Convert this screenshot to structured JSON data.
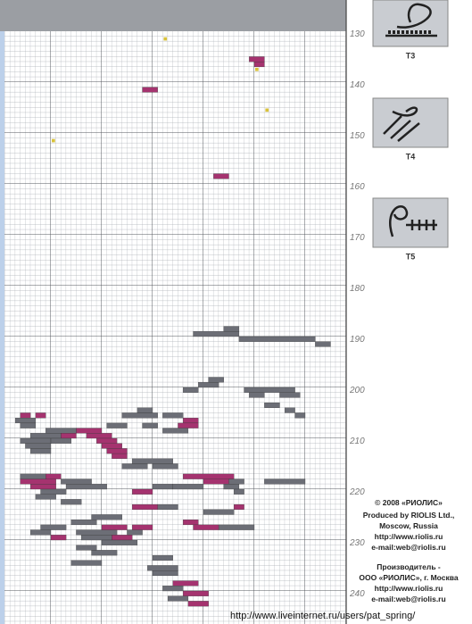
{
  "row_numbers": [
    "130",
    "140",
    "150",
    "160",
    "170",
    "180",
    "190",
    "200",
    "210",
    "220",
    "230",
    "240"
  ],
  "icons": [
    {
      "label": "T3"
    },
    {
      "label": "T4"
    },
    {
      "label": "T5"
    }
  ],
  "footer": {
    "copyright": "© 2008 «РИОЛИС»",
    "english": [
      "Produced by RIOLIS Ltd.,",
      "Moscow, Russia",
      "http://www.riolis.ru",
      "e-mail:web@riolis.ru"
    ],
    "russian": [
      "Производитель -",
      "ООО «РИОЛИС», г. Москва",
      "http://www.riolis.ru",
      "e-mail:web@riolis.ru"
    ]
  },
  "source_url": "http://www.liveinternet.ru/users/pat_spring/"
}
